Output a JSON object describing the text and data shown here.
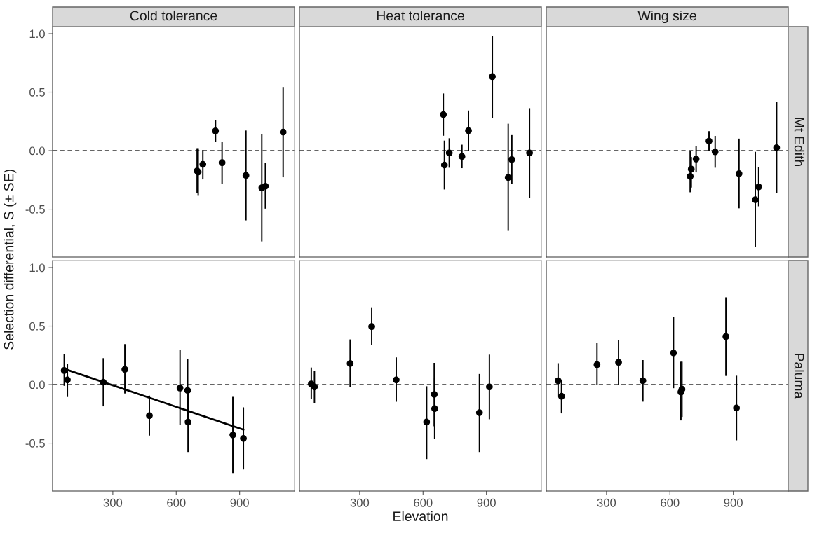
{
  "chart_data": [
    {
      "type": "scatter",
      "title": "Cold tolerance",
      "ylabel": "Selection differential, S (± SE)",
      "tick_labels": "y",
      "xlim": [
        15,
        1160
      ],
      "ylim": [
        -0.91,
        1.06
      ],
      "yticks": [
        {
          "value": -0.5,
          "label": "-0.5"
        },
        {
          "value": 0,
          "label": "0.0"
        },
        {
          "value": 0.5,
          "label": "0.5"
        },
        {
          "value": 1,
          "label": "1.0"
        }
      ],
      "grid": false,
      "marker": "circle",
      "ref_lines": [
        {
          "axis": "y",
          "value": 0,
          "line_style": "dashed",
          "color": "#333333"
        }
      ],
      "series": [
        {
          "color": "#000000",
          "x": [
            699,
            704,
            726,
            786,
            817,
            930,
            1005,
            1022,
            1106
          ],
          "values": [
            -0.173,
            -0.183,
            -0.117,
            0.168,
            -0.103,
            -0.212,
            -0.318,
            -0.304,
            0.158
          ],
          "errors": [
            [
              -0.355,
              0.015
            ],
            [
              -0.38,
              0.015
            ],
            [
              -0.24,
              0.0
            ],
            [
              0.08,
              0.255
            ],
            [
              -0.28,
              0.068
            ],
            [
              -0.59,
              0.166
            ],
            [
              -0.77,
              0.138
            ],
            [
              -0.49,
              -0.113
            ],
            [
              -0.222,
              0.538
            ]
          ]
        }
      ]
    },
    {
      "type": "scatter",
      "title": "Heat tolerance",
      "tick_labels": false,
      "xlim": [
        15,
        1160
      ],
      "ylim": [
        -0.91,
        1.06
      ],
      "grid": false,
      "marker": "circle",
      "ref_lines": [
        {
          "axis": "y",
          "value": 0,
          "line_style": "dashed",
          "color": "#333333"
        }
      ],
      "series": [
        {
          "color": "#000000",
          "x": [
            696,
            701,
            724,
            784,
            815,
            928,
            1003,
            1020,
            1104
          ],
          "values": [
            0.308,
            -0.123,
            -0.02,
            -0.05,
            0.17,
            0.632,
            -0.23,
            -0.076,
            -0.02
          ],
          "errors": [
            [
              0.133,
              0.483
            ],
            [
              -0.326,
              0.08
            ],
            [
              -0.14,
              0.1
            ],
            [
              -0.144,
              0.045
            ],
            [
              0.0,
              0.337
            ],
            [
              0.283,
              0.975
            ],
            [
              -0.68,
              0.224
            ],
            [
              -0.28,
              0.127
            ],
            [
              -0.4,
              0.357
            ]
          ]
        }
      ]
    },
    {
      "type": "scatter",
      "title": "Wing size",
      "annotations": [
        "Mt Edith"
      ],
      "tick_labels": false,
      "xlim": [
        15,
        1160
      ],
      "ylim": [
        -0.91,
        1.06
      ],
      "grid": false,
      "marker": "circle",
      "ref_lines": [
        {
          "axis": "y",
          "value": 0,
          "line_style": "dashed",
          "color": "#333333"
        }
      ],
      "series": [
        {
          "color": "#000000",
          "x": [
            696,
            701,
            724,
            785,
            814,
            927,
            1004,
            1020,
            1105
          ],
          "values": [
            -0.22,
            -0.158,
            -0.072,
            0.082,
            -0.01,
            -0.197,
            -0.42,
            -0.31,
            0.025
          ],
          "errors": [
            [
              -0.35,
              -0.01
            ],
            [
              -0.31,
              -0.06
            ],
            [
              -0.18,
              0.035
            ],
            [
              0.0,
              0.16
            ],
            [
              -0.14,
              0.12
            ],
            [
              -0.487,
              0.097
            ],
            [
              -0.82,
              -0.016
            ],
            [
              -0.47,
              -0.146
            ],
            [
              -0.355,
              0.41
            ]
          ]
        }
      ]
    },
    {
      "type": "scatter",
      "xlim": [
        15,
        1160
      ],
      "ylim": [
        -0.91,
        1.06
      ],
      "xticks": [
        300,
        600,
        900
      ],
      "yticks": [
        {
          "value": -0.5,
          "label": "-0.5"
        },
        {
          "value": 0,
          "label": "0.0"
        },
        {
          "value": 0.5,
          "label": "0.5"
        },
        {
          "value": 1,
          "label": "1.0"
        }
      ],
      "grid": false,
      "marker": "circle",
      "ref_lines": [
        {
          "axis": "y",
          "value": 0,
          "line_style": "dashed",
          "color": "#333333"
        }
      ],
      "series": [
        {
          "color": "#000000",
          "x": [
            70,
            85,
            255,
            357,
            473,
            618,
            654,
            656,
            868,
            918
          ],
          "values": [
            0.12,
            0.04,
            0.02,
            0.13,
            -0.265,
            -0.03,
            -0.05,
            -0.32,
            -0.43,
            -0.46
          ],
          "errors": [
            [
              -0.005,
              0.255
            ],
            [
              -0.1,
              0.17
            ],
            [
              -0.18,
              0.22
            ],
            [
              -0.07,
              0.34
            ],
            [
              -0.43,
              -0.1
            ],
            [
              -0.34,
              0.29
            ],
            [
              -0.31,
              0.21
            ],
            [
              -0.57,
              -0.07
            ],
            [
              -0.75,
              -0.11
            ],
            [
              -0.72,
              -0.2
            ]
          ]
        },
        {
          "type": "line",
          "marker": "none",
          "color": "#000000",
          "x": [
            78,
            918
          ],
          "values": [
            0.13,
            -0.385
          ]
        }
      ]
    },
    {
      "type": "scatter",
      "xlabel": "Elevation",
      "tick_labels": "x",
      "xlim": [
        15,
        1160
      ],
      "ylim": [
        -0.91,
        1.06
      ],
      "xticks": [
        300,
        600,
        900
      ],
      "grid": false,
      "marker": "circle",
      "ref_lines": [
        {
          "axis": "y",
          "value": 0,
          "line_style": "dashed",
          "color": "#333333"
        }
      ],
      "series": [
        {
          "color": "#000000",
          "x": [
            71,
            86,
            255,
            357,
            473,
            617,
            653,
            655,
            867,
            914
          ],
          "values": [
            0.005,
            -0.02,
            0.18,
            0.496,
            0.04,
            -0.32,
            -0.084,
            -0.206,
            -0.24,
            -0.02
          ],
          "errors": [
            [
              -0.12,
              0.14
            ],
            [
              -0.15,
              0.11
            ],
            [
              -0.015,
              0.38
            ],
            [
              0.345,
              0.655
            ],
            [
              -0.14,
              0.226
            ],
            [
              -0.63,
              -0.02
            ],
            [
              -0.35,
              0.18
            ],
            [
              -0.46,
              0.05
            ],
            [
              -0.57,
              0.085
            ],
            [
              -0.29,
              0.25
            ]
          ]
        }
      ]
    },
    {
      "type": "scatter",
      "annotations": [
        "Paluma"
      ],
      "tick_labels": "x",
      "xlim": [
        15,
        1160
      ],
      "ylim": [
        -0.91,
        1.06
      ],
      "xticks": [
        300,
        600,
        900
      ],
      "grid": false,
      "marker": "circle",
      "ref_lines": [
        {
          "axis": "y",
          "value": 0,
          "line_style": "dashed",
          "color": "#333333"
        }
      ],
      "series": [
        {
          "color": "#000000",
          "x": [
            71,
            87,
            255,
            357,
            472,
            617,
            652,
            657,
            865,
            915
          ],
          "values": [
            0.033,
            -0.1,
            0.17,
            0.19,
            0.033,
            0.27,
            -0.064,
            -0.04,
            0.41,
            -0.2
          ],
          "errors": [
            [
              -0.1,
              0.177
            ],
            [
              -0.24,
              0.03
            ],
            [
              0.0,
              0.35
            ],
            [
              0.0,
              0.375
            ],
            [
              -0.14,
              0.204
            ],
            [
              -0.025,
              0.57
            ],
            [
              -0.3,
              0.19
            ],
            [
              -0.27,
              0.19
            ],
            [
              0.08,
              0.74
            ],
            [
              -0.47,
              0.07
            ]
          ]
        }
      ]
    }
  ]
}
